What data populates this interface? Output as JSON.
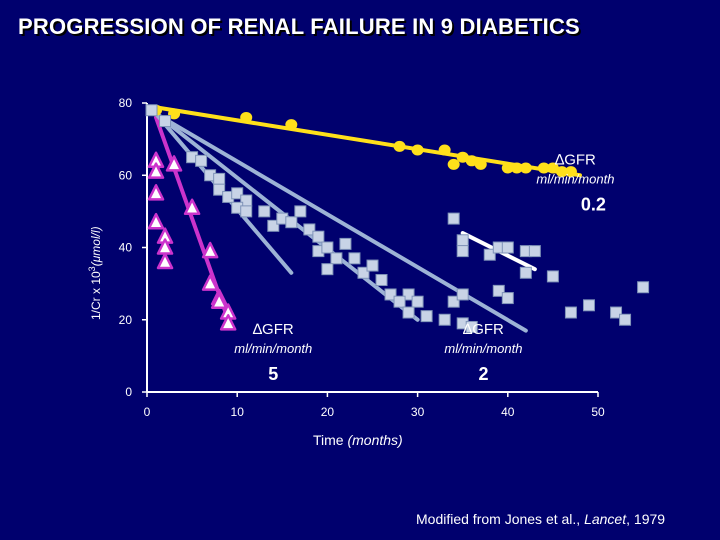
{
  "title": "PROGRESSION OF RENAL FAILURE IN 9 DIABETICS",
  "credit": {
    "prefix": "Modified from Jones et al., ",
    "journal": "Lancet",
    "suffix": ", 1979"
  },
  "colors": {
    "background": "#00006e",
    "yellow": "#ffe01a",
    "pink": "#cc33cc",
    "blue": "#9db3d6",
    "grey": "#c8d3e6",
    "axis": "#ffffff"
  },
  "chart_data": {
    "type": "scatter",
    "title": "PROGRESSION OF RENAL FAILURE IN 9 DIABETICS",
    "xlabel": "Time",
    "xlabel_unit": "(months)",
    "ylabel": "1/Cr x 10",
    "ylabel_sup": "3",
    "ylabel_unit": "(μmol/l)",
    "xlim": [
      0,
      50
    ],
    "ylim": [
      0,
      80
    ],
    "xticks": [
      0,
      10,
      20,
      30,
      40,
      50
    ],
    "yticks": [
      0,
      20,
      40,
      60,
      80
    ],
    "series": [
      {
        "name": "slow",
        "marker": "circle",
        "color": "#ffe01a",
        "points": [
          [
            1,
            78
          ],
          [
            3,
            77
          ],
          [
            11,
            76
          ],
          [
            16,
            74
          ],
          [
            28,
            68
          ],
          [
            30,
            67
          ],
          [
            33,
            67
          ],
          [
            34,
            63
          ],
          [
            35,
            65
          ],
          [
            36,
            64
          ],
          [
            37,
            63
          ],
          [
            40,
            62
          ],
          [
            41,
            62
          ],
          [
            42,
            62
          ],
          [
            44,
            62
          ],
          [
            45,
            62
          ],
          [
            46,
            61
          ],
          [
            47,
            61
          ]
        ]
      },
      {
        "name": "steep",
        "marker": "triangle",
        "color": "#cc33cc",
        "points": [
          [
            1,
            64
          ],
          [
            1,
            61
          ],
          [
            3,
            63
          ],
          [
            1,
            55
          ],
          [
            5,
            51
          ],
          [
            1,
            47
          ],
          [
            2,
            43
          ],
          [
            2,
            40
          ],
          [
            7,
            39
          ],
          [
            2,
            36
          ],
          [
            7,
            30
          ],
          [
            8,
            26
          ],
          [
            8,
            25
          ],
          [
            9,
            22
          ],
          [
            9,
            19
          ]
        ]
      },
      {
        "name": "mid",
        "marker": "square",
        "color": "#c8d3e6",
        "points": [
          [
            0.5,
            78
          ],
          [
            2,
            75
          ],
          [
            5,
            65
          ],
          [
            6,
            64
          ],
          [
            7,
            60
          ],
          [
            8,
            59
          ],
          [
            8,
            56
          ],
          [
            9,
            54
          ],
          [
            10,
            55
          ],
          [
            11,
            53
          ],
          [
            10,
            51
          ],
          [
            11,
            50
          ],
          [
            13,
            50
          ],
          [
            14,
            46
          ],
          [
            15,
            48
          ],
          [
            16,
            47
          ],
          [
            17,
            50
          ],
          [
            18,
            45
          ],
          [
            19,
            43
          ],
          [
            19,
            39
          ],
          [
            20,
            40
          ],
          [
            21,
            37
          ],
          [
            22,
            41
          ],
          [
            20,
            34
          ],
          [
            23,
            37
          ],
          [
            24,
            33
          ],
          [
            25,
            35
          ],
          [
            26,
            31
          ],
          [
            27,
            27
          ],
          [
            29,
            27
          ],
          [
            28,
            25
          ],
          [
            30,
            25
          ],
          [
            29,
            22
          ],
          [
            31,
            21
          ],
          [
            33,
            20
          ],
          [
            35,
            19
          ],
          [
            36,
            18
          ],
          [
            34,
            25
          ],
          [
            35,
            27
          ],
          [
            39,
            28
          ],
          [
            40,
            26
          ],
          [
            45,
            32
          ],
          [
            47,
            22
          ],
          [
            49,
            24
          ],
          [
            52,
            22
          ],
          [
            55,
            29
          ],
          [
            53,
            20
          ]
        ]
      },
      {
        "name": "plateau",
        "marker": "square",
        "color": "#c8d3e6",
        "points": [
          [
            34,
            48
          ],
          [
            35,
            42
          ],
          [
            35,
            39
          ],
          [
            38,
            38
          ],
          [
            39,
            40
          ],
          [
            40,
            40
          ],
          [
            42,
            39
          ],
          [
            43,
            39
          ],
          [
            42,
            33
          ]
        ]
      }
    ],
    "fit_lines": [
      {
        "name": "slow-fit",
        "color": "#ffe01a",
        "from": [
          0.5,
          79
        ],
        "to": [
          48,
          60
        ]
      },
      {
        "name": "steep-fit",
        "color": "#cc33cc",
        "from": [
          1,
          76
        ],
        "to": [
          9,
          20
        ]
      },
      {
        "name": "mid-fit-1",
        "color": "#9db3d6",
        "from": [
          1,
          77
        ],
        "to": [
          16,
          33
        ]
      },
      {
        "name": "mid-fit-2",
        "color": "#9db3d6",
        "from": [
          1,
          77
        ],
        "to": [
          30,
          20
        ]
      },
      {
        "name": "mid-fit-3",
        "color": "#9db3d6",
        "from": [
          1,
          77
        ],
        "to": [
          42,
          17
        ]
      },
      {
        "name": "plateau-fit",
        "color": "#ffffff",
        "from": [
          35,
          44
        ],
        "to": [
          43,
          34
        ]
      }
    ],
    "annotations": [
      {
        "name": "gfr-slow",
        "label": "∆GFR",
        "unit": "ml/min/month",
        "value": "0.2"
      },
      {
        "name": "gfr-fast",
        "label": "∆GFR",
        "unit": "ml/min/month",
        "value": "5"
      },
      {
        "name": "gfr-mid",
        "label": "∆GFR",
        "unit": "ml/min/month",
        "value": "2"
      }
    ]
  }
}
